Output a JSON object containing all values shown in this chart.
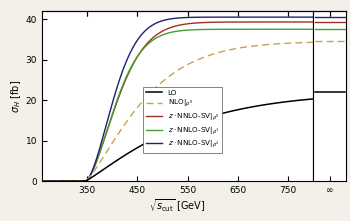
{
  "xlabel": "$\\sqrt{s_{\\mathrm{cut}}}$ [GeV]",
  "ylabel": "$\\sigma_H$ [fb]",
  "xlim_main": [
    260,
    800
  ],
  "ylim": [
    0,
    42
  ],
  "yticks": [
    0,
    10,
    20,
    30,
    40
  ],
  "xticks_main": [
    350,
    450,
    550,
    650,
    750
  ],
  "bg_outer": "#f2f0e8",
  "bg_inner": "#ffffff",
  "LO_color": "#000000",
  "NLO_color": "#c8a050",
  "NNLO_rho0_color": "#a03020",
  "NNLO_rho1_color": "#40a030",
  "NNLO_rho2_color": "#202070",
  "inf_values": {
    "LO": 22.0,
    "NLO": 34.5,
    "NNLO_rho0": 39.3,
    "NNLO_rho1": 37.5,
    "NNLO_rho2": 40.5
  },
  "x0_threshold": 346.0,
  "LO_scale": 200,
  "LO_amp": 22.0,
  "LO_power": 1.15,
  "NLO_scale": 130,
  "NLO_amp": 34.5,
  "NLO_power": 1.3,
  "NNLO_rho0_scale": 80,
  "NNLO_rho0_amp": 39.3,
  "NNLO_rho0_power": 1.6,
  "NNLO_rho1_scale": 75,
  "NNLO_rho1_amp": 37.5,
  "NNLO_rho1_power": 1.65,
  "NNLO_rho2_scale": 70,
  "NNLO_rho2_amp": 40.5,
  "NNLO_rho2_power": 1.7
}
